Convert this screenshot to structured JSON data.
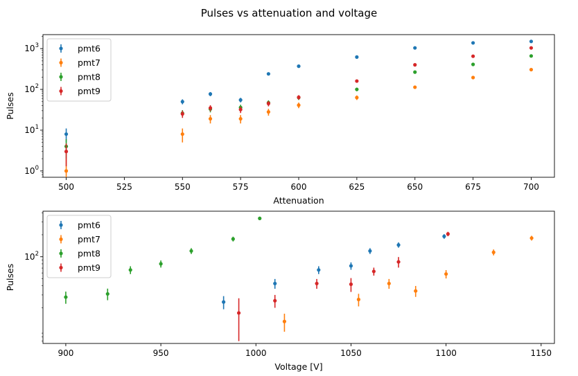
{
  "figure": {
    "title": "Pulses vs attenuation and voltage"
  },
  "colors": {
    "pmt6": "#1f77b4",
    "pmt7": "#ff7f0e",
    "pmt8": "#2ca02c",
    "pmt9": "#d62728"
  },
  "chart_data": [
    {
      "type": "scatter",
      "subtype": "errorbar",
      "xlabel": "Attenuation",
      "ylabel": "Pulses",
      "yscale": "log",
      "xlim": [
        490,
        710
      ],
      "ylim": [
        0.7,
        2200
      ],
      "xticks": [
        500,
        525,
        550,
        575,
        600,
        625,
        650,
        675,
        700
      ],
      "xtick_labels": [
        "500",
        "525",
        "550",
        "575",
        "600",
        "625",
        "650",
        "675",
        "700"
      ],
      "yticks": [
        1,
        10,
        100,
        1000
      ],
      "ytick_labels": [
        "10^0",
        "10^1",
        "10^2",
        "10^3"
      ],
      "legend": "top-left",
      "grid": false,
      "series": [
        {
          "name": "pmt6",
          "points": [
            {
              "x": 500,
              "y": 8,
              "err": 3
            },
            {
              "x": 550,
              "y": 50,
              "err": 7
            },
            {
              "x": 562,
              "y": 77,
              "err": 9
            },
            {
              "x": 575,
              "y": 55,
              "err": 7
            },
            {
              "x": 587,
              "y": 240,
              "err": 15
            },
            {
              "x": 600,
              "y": 370,
              "err": 19
            },
            {
              "x": 625,
              "y": 620,
              "err": 25
            },
            {
              "x": 650,
              "y": 1040,
              "err": 32
            },
            {
              "x": 675,
              "y": 1380,
              "err": 37
            },
            {
              "x": 700,
              "y": 1500,
              "err": 39
            }
          ]
        },
        {
          "name": "pmt7",
          "points": [
            {
              "x": 500,
              "y": 1,
              "err": 1
            },
            {
              "x": 550,
              "y": 8,
              "err": 3
            },
            {
              "x": 562,
              "y": 19,
              "err": 4.4
            },
            {
              "x": 575,
              "y": 19,
              "err": 4.4
            },
            {
              "x": 587,
              "y": 28,
              "err": 5.3
            },
            {
              "x": 600,
              "y": 41,
              "err": 6.4
            },
            {
              "x": 625,
              "y": 63,
              "err": 8
            },
            {
              "x": 650,
              "y": 113,
              "err": 10.6
            },
            {
              "x": 675,
              "y": 195,
              "err": 14
            },
            {
              "x": 700,
              "y": 305,
              "err": 17.5
            }
          ]
        },
        {
          "name": "pmt8",
          "points": [
            {
              "x": 500,
              "y": 4,
              "err": 2
            },
            {
              "x": 550,
              "y": 26,
              "err": 5
            },
            {
              "x": 562,
              "y": 33,
              "err": 5.7
            },
            {
              "x": 575,
              "y": 36,
              "err": 6
            },
            {
              "x": 587,
              "y": 47,
              "err": 6.9
            },
            {
              "x": 600,
              "y": 63,
              "err": 8
            },
            {
              "x": 625,
              "y": 100,
              "err": 10
            },
            {
              "x": 650,
              "y": 265,
              "err": 16
            },
            {
              "x": 675,
              "y": 410,
              "err": 20
            },
            {
              "x": 700,
              "y": 660,
              "err": 26
            }
          ]
        },
        {
          "name": "pmt9",
          "points": [
            {
              "x": 500,
              "y": 3,
              "err": 1.7
            },
            {
              "x": 550,
              "y": 25,
              "err": 5
            },
            {
              "x": 562,
              "y": 35,
              "err": 5.9
            },
            {
              "x": 575,
              "y": 32,
              "err": 5.7
            },
            {
              "x": 587,
              "y": 45,
              "err": 6.7
            },
            {
              "x": 600,
              "y": 64,
              "err": 8
            },
            {
              "x": 625,
              "y": 160,
              "err": 12.6
            },
            {
              "x": 650,
              "y": 400,
              "err": 20
            },
            {
              "x": 675,
              "y": 650,
              "err": 25.5
            },
            {
              "x": 700,
              "y": 1040,
              "err": 32
            }
          ]
        }
      ]
    },
    {
      "type": "scatter",
      "subtype": "errorbar",
      "xlabel": "Voltage [V]",
      "ylabel": "Pulses",
      "yscale": "log",
      "xlim": [
        888,
        1157
      ],
      "ylim": [
        6.5,
        420
      ],
      "xticks": [
        900,
        950,
        1000,
        1050,
        1100,
        1150
      ],
      "xtick_labels": [
        "900",
        "950",
        "1000",
        "1050",
        "1100",
        "1150"
      ],
      "yticks": [
        100
      ],
      "ytick_labels": [
        "10^2"
      ],
      "legend": "top-left",
      "grid": false,
      "series": [
        {
          "name": "pmt6",
          "points": [
            {
              "x": 983,
              "y": 24,
              "err": 4.9
            },
            {
              "x": 1010,
              "y": 43,
              "err": 6.6
            },
            {
              "x": 1033,
              "y": 66,
              "err": 8.1
            },
            {
              "x": 1050,
              "y": 75,
              "err": 8.7
            },
            {
              "x": 1060,
              "y": 120,
              "err": 11
            },
            {
              "x": 1075,
              "y": 145,
              "err": 12
            },
            {
              "x": 1099,
              "y": 190,
              "err": 13.8
            }
          ]
        },
        {
          "name": "pmt7",
          "points": [
            {
              "x": 1015,
              "y": 13,
              "err": 3.6
            },
            {
              "x": 1054,
              "y": 26,
              "err": 5.1
            },
            {
              "x": 1070,
              "y": 43,
              "err": 6.6
            },
            {
              "x": 1084,
              "y": 34,
              "err": 5.8
            },
            {
              "x": 1100,
              "y": 58,
              "err": 7.6
            },
            {
              "x": 1125,
              "y": 115,
              "err": 10.7
            },
            {
              "x": 1145,
              "y": 180,
              "err": 13.4
            }
          ]
        },
        {
          "name": "pmt8",
          "points": [
            {
              "x": 900,
              "y": 28,
              "err": 5.3
            },
            {
              "x": 922,
              "y": 31,
              "err": 5.6
            },
            {
              "x": 934,
              "y": 66,
              "err": 8.1
            },
            {
              "x": 950,
              "y": 80,
              "err": 8.9
            },
            {
              "x": 966,
              "y": 120,
              "err": 11
            },
            {
              "x": 988,
              "y": 175,
              "err": 13.2
            },
            {
              "x": 1002,
              "y": 335,
              "err": 18.3
            }
          ]
        },
        {
          "name": "pmt9",
          "points": [
            {
              "x": 991,
              "y": 17,
              "err": 10
            },
            {
              "x": 1010,
              "y": 25,
              "err": 5
            },
            {
              "x": 1032,
              "y": 43,
              "err": 6.6
            },
            {
              "x": 1050,
              "y": 42,
              "err": 9
            },
            {
              "x": 1062,
              "y": 63,
              "err": 7.9
            },
            {
              "x": 1075,
              "y": 85,
              "err": 14
            },
            {
              "x": 1101,
              "y": 205,
              "err": 14.3
            }
          ]
        }
      ]
    }
  ]
}
